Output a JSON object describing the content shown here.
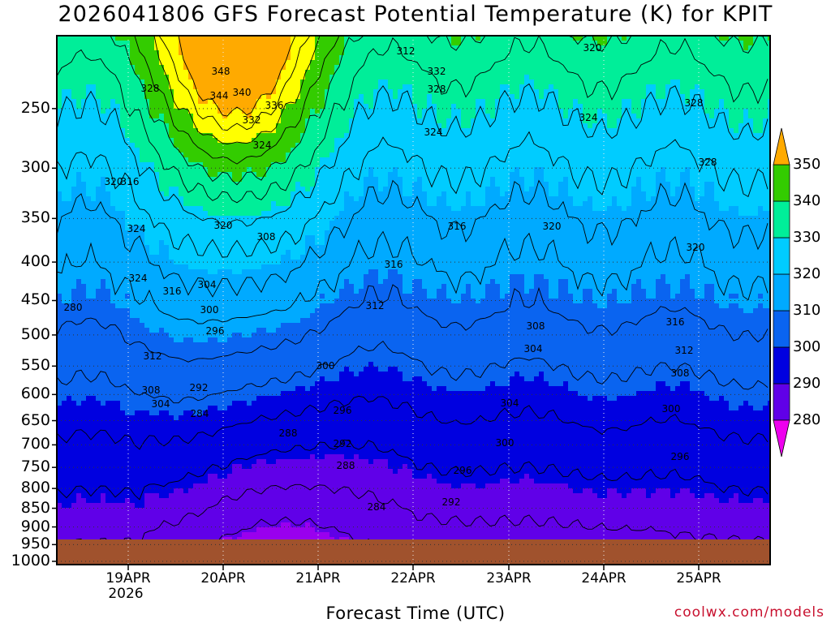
{
  "chart_data": {
    "type": "heatmap",
    "title": "2026041806 GFS Forecast Potential Temperature (K) for KPIT",
    "xlabel": "Forecast Time (UTC)",
    "ylabel": "",
    "credit": "coolwx.com/models",
    "x_ticks": [
      "19APR",
      "20APR",
      "21APR",
      "22APR",
      "23APR",
      "24APR",
      "25APR"
    ],
    "x_tick_year": "2026",
    "x_range": [
      "18APR 06UTC",
      "25APR 18UTC"
    ],
    "y_ticks": [
      250,
      300,
      350,
      400,
      450,
      500,
      550,
      600,
      650,
      700,
      750,
      800,
      850,
      900,
      950,
      1000
    ],
    "y_unit": "hPa",
    "y_range": [
      1000,
      200
    ],
    "y_scale": "log-pressure",
    "grid": "dotted",
    "colorbar": {
      "levels": [
        280,
        290,
        300,
        310,
        320,
        330,
        340,
        350
      ],
      "labels": [
        "280",
        "290",
        "300",
        "310",
        "320",
        "330",
        "340",
        "350"
      ],
      "colors": [
        "#ee00ee",
        "#9900ee",
        "#6000e8",
        "#0000e0",
        "#0a64f0",
        "#00aaff",
        "#00ccff",
        "#00ee99",
        "#33cc00",
        "#ffff00",
        "#ffaa00"
      ],
      "placement": "right"
    },
    "contour_labels": [
      "328",
      "348",
      "344",
      "340",
      "336",
      "332",
      "324",
      "316",
      "312",
      "332",
      "328",
      "324",
      "320",
      "328",
      "324",
      "328",
      "324",
      "320",
      "324",
      "320",
      "316",
      "320",
      "308",
      "304",
      "300",
      "296",
      "292",
      "284",
      "288",
      "280",
      "316",
      "312",
      "308",
      "304",
      "300",
      "296",
      "292",
      "288",
      "284",
      "320",
      "316",
      "312",
      "308",
      "304",
      "300",
      "296",
      "292",
      "316",
      "312",
      "308",
      "304",
      "300",
      "296"
    ]
  }
}
